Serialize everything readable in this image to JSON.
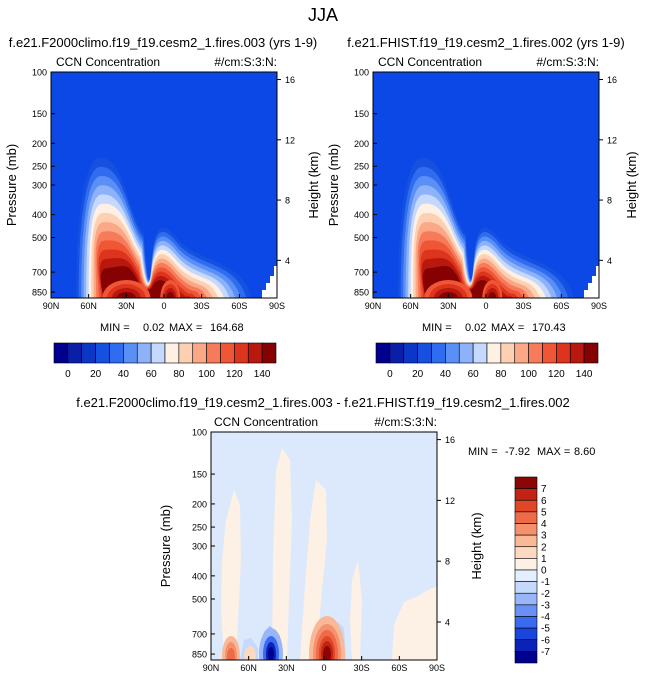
{
  "page": {
    "season": "JJA"
  },
  "colors": {
    "background": "#ffffff",
    "bg_fill": "#0b48e6",
    "abs_scale": [
      "#00008f",
      "#0a1ea8",
      "#0c36c6",
      "#1550e0",
      "#2f6cf0",
      "#5a8ff6",
      "#8db2fa",
      "#c5d8fd",
      "#fff0e4",
      "#fdd0b4",
      "#fba886",
      "#f77b5a",
      "#ef5636",
      "#dd341d",
      "#b8180e",
      "#860202"
    ],
    "diff_scale": [
      "#00008f",
      "#0a22b8",
      "#1a46dc",
      "#3a6af0",
      "#6a90f6",
      "#9ab6fa",
      "#c4d9fc",
      "#e3eefe",
      "#fdf0e4",
      "#fcd9c0",
      "#f9b896",
      "#f5916c",
      "#ef6a48",
      "#e04628",
      "#c12412",
      "#8c0606"
    ]
  },
  "chart_data": [
    {
      "type": "contour",
      "title": "f.e21.F2000climo.f19_f19.cesm2_1.fires.003 (yrs 1-9)",
      "subtitle_left": "CCN Concentration",
      "subtitle_right": "#/cm:S:3:N:",
      "ylabel": "Pressure (mb)",
      "ylabel_right": "Height (km)",
      "x_ticks": [
        "90N",
        "60N",
        "30N",
        "0",
        "30S",
        "60S",
        "90S"
      ],
      "y_ticks": [
        "100",
        "150",
        "200",
        "250",
        "300",
        "400",
        "500",
        "700",
        "850"
      ],
      "y_ticks_right": [
        "16",
        "12",
        "8",
        "4"
      ],
      "stats": {
        "min_label": "MIN =",
        "min": "0.02",
        "max_label": "MAX =",
        "max": "164.68"
      },
      "colorbar_labels": [
        "0",
        "20",
        "40",
        "60",
        "80",
        "100",
        "120",
        "140"
      ],
      "colorbar_levels": [
        0,
        10,
        20,
        30,
        40,
        50,
        60,
        70,
        80,
        90,
        100,
        110,
        120,
        130,
        140
      ],
      "peaks": [
        {
          "lat": 30,
          "value": 150
        },
        {
          "lat": -5,
          "value": 150
        }
      ],
      "plume_top_mb": 230
    },
    {
      "type": "contour",
      "title": "f.e21.FHIST.f19_f19.cesm2_1.fires.002 (yrs 1-9)",
      "subtitle_left": "CCN Concentration",
      "subtitle_right": "#/cm:S:3:N:",
      "ylabel": "Pressure (mb)",
      "ylabel_right": "Height (km)",
      "x_ticks": [
        "90N",
        "60N",
        "30N",
        "0",
        "30S",
        "60S",
        "90S"
      ],
      "y_ticks": [
        "100",
        "150",
        "200",
        "250",
        "300",
        "400",
        "500",
        "700",
        "850"
      ],
      "y_ticks_right": [
        "16",
        "12",
        "8",
        "4"
      ],
      "stats": {
        "min_label": "MIN =",
        "min": "0.02",
        "max_label": "MAX =",
        "max": "170.43"
      },
      "colorbar_labels": [
        "0",
        "20",
        "40",
        "60",
        "80",
        "100",
        "120",
        "140"
      ],
      "colorbar_levels": [
        0,
        10,
        20,
        30,
        40,
        50,
        60,
        70,
        80,
        90,
        100,
        110,
        120,
        130,
        140
      ],
      "peaks": [
        {
          "lat": 30,
          "value": 150
        },
        {
          "lat": -5,
          "value": 150
        }
      ],
      "plume_top_mb": 230
    },
    {
      "type": "contour",
      "title": "f.e21.F2000climo.f19_f19.cesm2_1.fires.003 - f.e21.FHIST.f19_f19.cesm2_1.fires.002",
      "subtitle_left": "CCN Concentration",
      "subtitle_right": "#/cm:S:3:N:",
      "ylabel": "Pressure (mb)",
      "ylabel_right": "Height (km)",
      "x_ticks": [
        "90N",
        "60N",
        "30N",
        "0",
        "30S",
        "60S",
        "90S"
      ],
      "y_ticks": [
        "100",
        "150",
        "200",
        "250",
        "300",
        "400",
        "500",
        "700",
        "850"
      ],
      "y_ticks_right": [
        "16",
        "12",
        "8",
        "4"
      ],
      "stats": {
        "min_label": "MIN =",
        "min": "-7.92",
        "max_label": "MAX =",
        "max": "8.60"
      },
      "colorbar_labels": [
        "7",
        "6",
        "5",
        "4",
        "3",
        "2",
        "1",
        "0",
        "-1",
        "-2",
        "-3",
        "-4",
        "-5",
        "-6",
        "-7"
      ],
      "colorbar_levels": [
        7,
        6,
        5,
        4,
        3,
        2,
        1,
        0,
        -1,
        -2,
        -3,
        -4,
        -5,
        -6,
        -7
      ],
      "extremes": [
        {
          "lat": 42,
          "value": -7
        },
        {
          "lat": 0,
          "value": 7
        }
      ]
    }
  ]
}
